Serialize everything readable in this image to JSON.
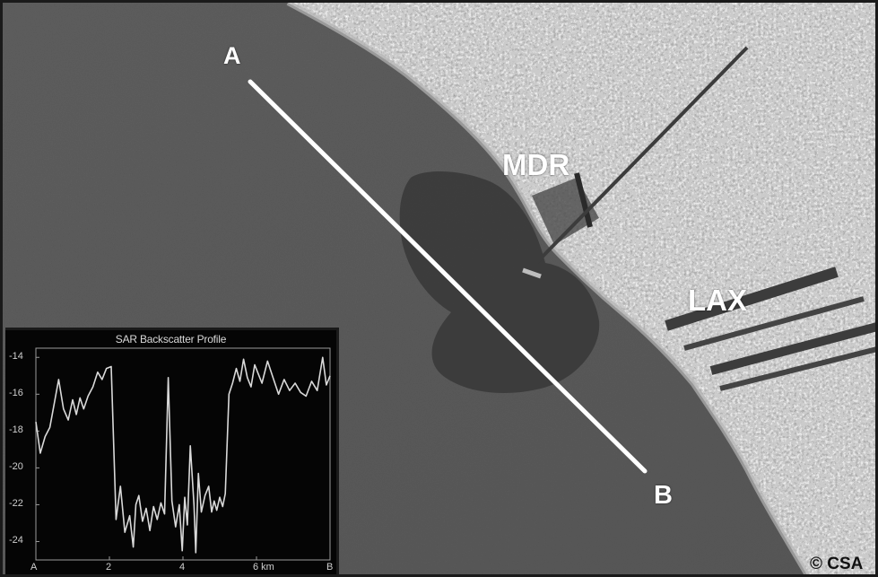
{
  "labels": {
    "point_a": "A",
    "point_b": "B",
    "marina": "MDR",
    "airport": "LAX",
    "copyright": "© CSA"
  },
  "colors": {
    "frame": "#1a1a1a",
    "ocean": "#5b5b5b",
    "slick": "#383838",
    "land": "#8e8e8e",
    "transect_line": "#ffffff",
    "label_text": "#ffffff",
    "profile_line": "#d9d9d9"
  },
  "chart_data": {
    "type": "line",
    "title": "SAR Backscatter Profile",
    "xlabel": "",
    "ylabel": "",
    "x_tick_labels": [
      "A",
      "2",
      "4",
      "6 km",
      "B"
    ],
    "x_tick_values": [
      0,
      2,
      4,
      6,
      8
    ],
    "y_tick_labels": [
      "-14",
      "-16",
      "-18",
      "-20",
      "-22",
      "-24"
    ],
    "y_tick_values": [
      -14,
      -16,
      -18,
      -20,
      -22,
      -24
    ],
    "xlim": [
      0,
      8
    ],
    "ylim": [
      -25,
      -13.5
    ],
    "grid": false,
    "series": [
      {
        "x": [
          0,
          0.12,
          0.25,
          0.38,
          0.5,
          0.62,
          0.75,
          0.88,
          1.0,
          1.1,
          1.2,
          1.3,
          1.42,
          1.55,
          1.68,
          1.8,
          1.92,
          2.05,
          2.18,
          2.3,
          2.42,
          2.55,
          2.65,
          2.72,
          2.8,
          2.9,
          3.0,
          3.1,
          3.2,
          3.3,
          3.4,
          3.5,
          3.6,
          3.7,
          3.8,
          3.9,
          3.98,
          4.05,
          4.12,
          4.2,
          4.3,
          4.35,
          4.42,
          4.5,
          4.6,
          4.7,
          4.78,
          4.85,
          4.92,
          5.0,
          5.08,
          5.15,
          5.25,
          5.35,
          5.45,
          5.55,
          5.65,
          5.75,
          5.85,
          5.95,
          6.05,
          6.15,
          6.3,
          6.45,
          6.6,
          6.75,
          6.9,
          7.05,
          7.2,
          7.35,
          7.5,
          7.65,
          7.8,
          7.9,
          8.0
        ],
        "values": [
          -17.5,
          -19.2,
          -18.3,
          -17.8,
          -16.5,
          -15.2,
          -16.8,
          -17.4,
          -16.3,
          -17.1,
          -16.2,
          -16.8,
          -16.1,
          -15.6,
          -14.8,
          -15.2,
          -14.6,
          -14.5,
          -22.8,
          -21.0,
          -23.5,
          -22.6,
          -24.3,
          -22.0,
          -21.5,
          -22.9,
          -22.2,
          -23.4,
          -22.1,
          -22.8,
          -21.9,
          -22.5,
          -15.1,
          -21.8,
          -23.2,
          -22.0,
          -24.5,
          -21.6,
          -23.1,
          -18.8,
          -22.0,
          -24.6,
          -20.3,
          -22.4,
          -21.5,
          -21.0,
          -22.4,
          -21.8,
          -22.3,
          -21.6,
          -22.1,
          -21.4,
          -16.0,
          -15.4,
          -14.6,
          -15.3,
          -14.1,
          -15.1,
          -15.6,
          -14.4,
          -14.9,
          -15.4,
          -14.2,
          -15.1,
          -16.0,
          -15.2,
          -15.8,
          -15.4,
          -15.9,
          -16.1,
          -15.3,
          -15.8,
          -14.0,
          -15.5,
          -15.0
        ]
      }
    ]
  }
}
